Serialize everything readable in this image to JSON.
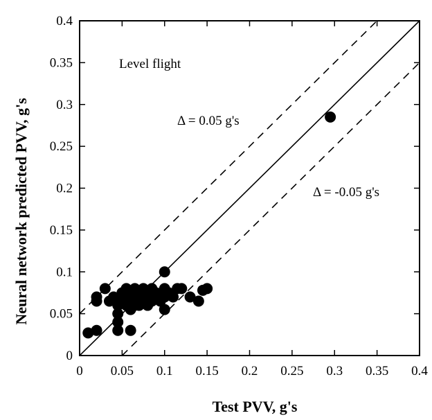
{
  "chart_data": {
    "type": "scatter",
    "title": "",
    "xlabel": "Test  PVV,  g's",
    "ylabel": "Neural  network  predicted  PVV,  g's",
    "xlim": [
      0,
      0.4
    ],
    "ylim": [
      0,
      0.4
    ],
    "x_ticks": [
      "0",
      "0.05",
      "0.1",
      "0.15",
      "0.2",
      "0.25",
      "0.3",
      "0.35",
      "0.4"
    ],
    "y_ticks": [
      "0",
      "0.05",
      "0.1",
      "0.15",
      "0.2",
      "0.25",
      "0.3",
      "0.35",
      "0.4"
    ],
    "grid": false,
    "annotations": {
      "condition": "Level flight",
      "upper_band": "Δ = 0.05 g's",
      "lower_band": "Δ = -0.05 g's"
    },
    "lines": [
      {
        "style": "solid",
        "x": [
          0,
          0.4
        ],
        "y": [
          0,
          0.4
        ]
      },
      {
        "style": "dashed",
        "x": [
          0,
          0.35
        ],
        "y": [
          0.05,
          0.4
        ]
      },
      {
        "style": "dashed",
        "x": [
          0.05,
          0.4
        ],
        "y": [
          0,
          0.35
        ]
      }
    ],
    "points": [
      [
        0.01,
        0.027
      ],
      [
        0.02,
        0.03
      ],
      [
        0.045,
        0.03
      ],
      [
        0.06,
        0.03
      ],
      [
        0.02,
        0.065
      ],
      [
        0.02,
        0.07
      ],
      [
        0.03,
        0.08
      ],
      [
        0.035,
        0.065
      ],
      [
        0.04,
        0.07
      ],
      [
        0.045,
        0.06
      ],
      [
        0.045,
        0.05
      ],
      [
        0.045,
        0.04
      ],
      [
        0.05,
        0.065
      ],
      [
        0.05,
        0.075
      ],
      [
        0.055,
        0.06
      ],
      [
        0.055,
        0.08
      ],
      [
        0.06,
        0.07
      ],
      [
        0.06,
        0.055
      ],
      [
        0.06,
        0.065
      ],
      [
        0.065,
        0.06
      ],
      [
        0.065,
        0.08
      ],
      [
        0.065,
        0.07
      ],
      [
        0.07,
        0.065
      ],
      [
        0.07,
        0.075
      ],
      [
        0.07,
        0.06
      ],
      [
        0.075,
        0.07
      ],
      [
        0.075,
        0.08
      ],
      [
        0.08,
        0.06
      ],
      [
        0.08,
        0.07
      ],
      [
        0.08,
        0.075
      ],
      [
        0.085,
        0.065
      ],
      [
        0.085,
        0.08
      ],
      [
        0.09,
        0.07
      ],
      [
        0.09,
        0.075
      ],
      [
        0.095,
        0.065
      ],
      [
        0.1,
        0.07
      ],
      [
        0.1,
        0.08
      ],
      [
        0.105,
        0.075
      ],
      [
        0.11,
        0.07
      ],
      [
        0.115,
        0.08
      ],
      [
        0.12,
        0.08
      ],
      [
        0.1,
        0.055
      ],
      [
        0.1,
        0.1
      ],
      [
        0.13,
        0.07
      ],
      [
        0.14,
        0.065
      ],
      [
        0.145,
        0.078
      ],
      [
        0.15,
        0.08
      ],
      [
        0.295,
        0.285
      ]
    ]
  }
}
